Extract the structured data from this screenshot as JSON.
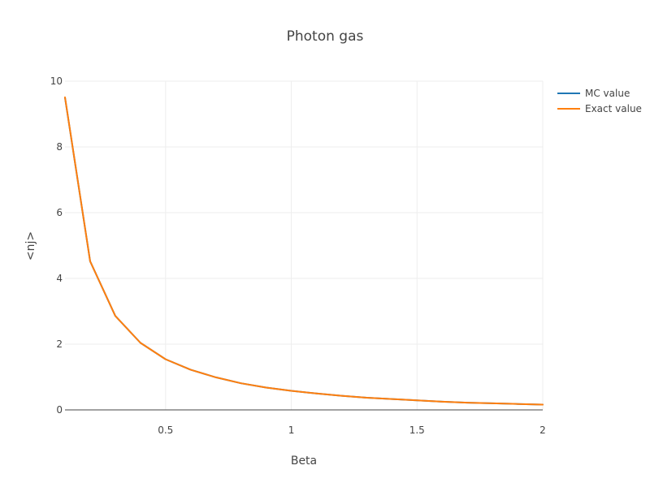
{
  "chart_data": {
    "type": "line",
    "title": "Photon gas",
    "xlabel": "Beta",
    "ylabel": "<nj>",
    "xlim": [
      0.1,
      2
    ],
    "ylim": [
      0,
      10
    ],
    "xticks": [
      0.5,
      1,
      1.5,
      2
    ],
    "yticks": [
      0,
      2,
      4,
      6,
      8,
      10
    ],
    "xtick_labels": [
      "0.5",
      "1",
      "1.5",
      "2"
    ],
    "ytick_labels": [
      "0",
      "2",
      "4",
      "6",
      "8",
      "10"
    ],
    "grid": true,
    "legend_position": "top-right",
    "x": [
      0.1,
      0.2,
      0.3,
      0.4,
      0.5,
      0.6,
      0.7,
      0.8,
      0.9,
      1.0,
      1.1,
      1.2,
      1.3,
      1.4,
      1.5,
      1.6,
      1.7,
      1.8,
      1.9,
      2.0
    ],
    "series": [
      {
        "name": "MC value",
        "color": "#1f77b4",
        "values": [
          9.5,
          4.52,
          2.86,
          2.04,
          1.54,
          1.22,
          0.99,
          0.81,
          0.68,
          0.58,
          0.5,
          0.43,
          0.37,
          0.33,
          0.29,
          0.25,
          0.22,
          0.2,
          0.18,
          0.16
        ]
      },
      {
        "name": "Exact value",
        "color": "#ff7f0e",
        "values": [
          9.51,
          4.52,
          2.86,
          2.04,
          1.54,
          1.22,
          0.99,
          0.81,
          0.68,
          0.58,
          0.5,
          0.43,
          0.37,
          0.33,
          0.29,
          0.25,
          0.22,
          0.2,
          0.18,
          0.16
        ]
      }
    ]
  }
}
